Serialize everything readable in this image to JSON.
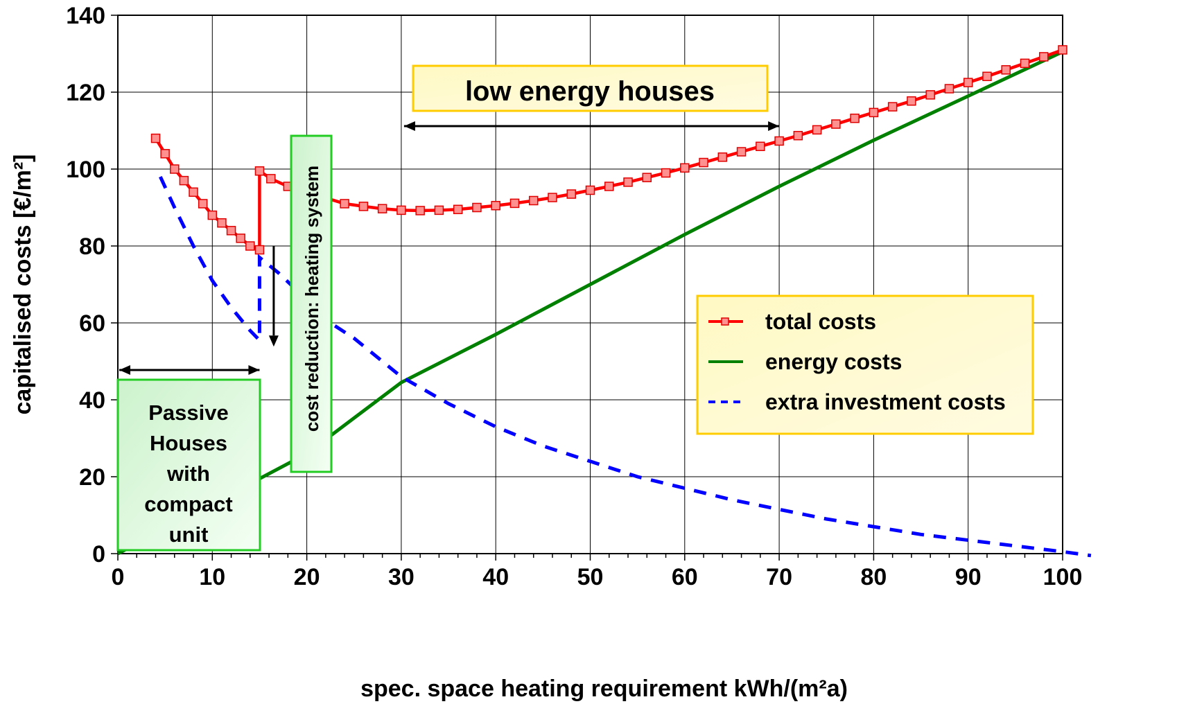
{
  "chart_data": {
    "type": "line",
    "xlabel": "spec. space heating requirement kWh/(m²a)",
    "ylabel": "capitalised costs [€/m²]",
    "xlim": [
      0,
      100
    ],
    "ylim": [
      0,
      140
    ],
    "x_ticks": [
      "0",
      "10",
      "20",
      "30",
      "40",
      "50",
      "60",
      "70",
      "80",
      "90",
      "100"
    ],
    "y_ticks": [
      "0",
      "20",
      "40",
      "60",
      "80",
      "100",
      "120",
      "140"
    ],
    "grid": true,
    "legend_position": "right",
    "series": [
      {
        "name": "total costs",
        "color": "#ff0000",
        "marker": "square",
        "style": "solid",
        "x": [
          4,
          5,
          6,
          7,
          8,
          9,
          10,
          11,
          12,
          13,
          14,
          15,
          15,
          16.2,
          18,
          20,
          22,
          24,
          26,
          28,
          30,
          32,
          34,
          36,
          38,
          40,
          42,
          44,
          46,
          48,
          50,
          52,
          54,
          56,
          58,
          60,
          62,
          64,
          66,
          68,
          70,
          72,
          74,
          76,
          78,
          80,
          82,
          84,
          86,
          88,
          90,
          92,
          94,
          96,
          98,
          100
        ],
        "y": [
          108,
          104,
          100,
          97,
          94,
          91,
          88,
          86,
          84,
          82,
          80,
          79,
          99.5,
          97.5,
          95.5,
          94,
          92.5,
          91,
          90.3,
          89.7,
          89.3,
          89.2,
          89.3,
          89.5,
          90,
          90.5,
          91.1,
          91.8,
          92.6,
          93.5,
          94.5,
          95.5,
          96.6,
          97.8,
          99,
          100.3,
          101.7,
          103.1,
          104.5,
          105.9,
          107.3,
          108.7,
          110.2,
          111.7,
          113.2,
          114.7,
          116.2,
          117.7,
          119.3,
          120.9,
          122.5,
          124.1,
          125.8,
          127.5,
          129.2,
          131
        ]
      },
      {
        "name": "energy costs",
        "color": "#008000",
        "marker": "none",
        "style": "solid",
        "x": [
          0,
          15,
          20,
          30,
          40,
          50,
          60,
          70,
          80,
          90,
          100
        ],
        "y": [
          0,
          19.5,
          26,
          44.5,
          57,
          70,
          83,
          95.5,
          107.5,
          119,
          130.5
        ]
      },
      {
        "name": "extra investment costs",
        "color": "#0000ff",
        "marker": "none",
        "style": "dashed",
        "x": [
          4.5,
          6,
          8,
          10,
          12,
          14,
          15,
          15,
          17,
          20,
          22.5,
          25,
          30,
          35,
          40,
          45,
          50,
          55,
          60,
          65,
          70,
          75,
          80,
          85,
          90,
          95,
          100,
          103
        ],
        "y": [
          98,
          90,
          80,
          71,
          64,
          58,
          55.5,
          77,
          73,
          66,
          60,
          56,
          46,
          39,
          33,
          28,
          24,
          20,
          17,
          14,
          11.5,
          9,
          7,
          5,
          3.5,
          2,
          0.5,
          -0.5
        ]
      }
    ],
    "annotations": [
      {
        "text": "low energy houses"
      },
      {
        "text": "cost reduction: heating system"
      },
      {
        "text": "Passive Houses with compact unit"
      }
    ]
  },
  "annotation_lines": {
    "low_energy": [
      "low energy houses"
    ],
    "cost_reduction": [
      "cost reduction: heating system"
    ],
    "passive": [
      "Passive",
      "Houses",
      "with",
      "compact",
      "unit"
    ]
  },
  "ranges": {
    "passive_x": [
      0,
      15
    ],
    "low_energy_x": [
      30,
      70
    ],
    "cost_drop_x": 16.5,
    "cost_drop_y": [
      80,
      56
    ]
  }
}
